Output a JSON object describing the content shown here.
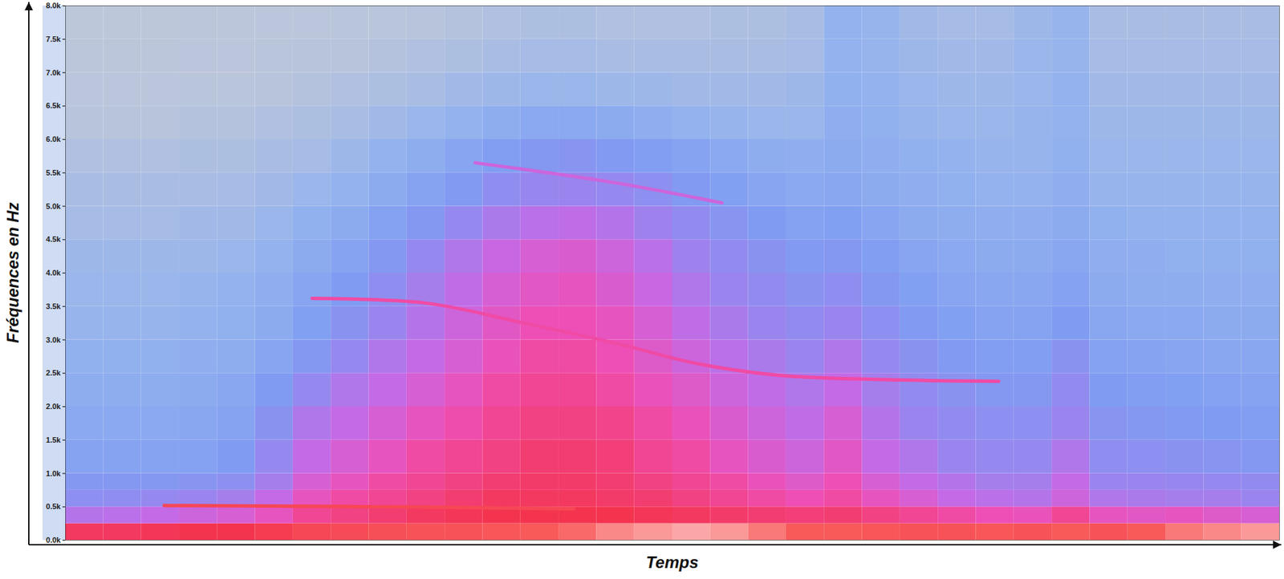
{
  "chart_data": {
    "type": "heatmap",
    "xlabel": "Temps",
    "ylabel": "Fréquences en Hz",
    "xlim": [
      0,
      32
    ],
    "ylim": [
      0,
      8000
    ],
    "tick_labels": "y",
    "yticks": [
      {
        "value": 0,
        "label": "0.0k"
      },
      {
        "value": 500,
        "label": "0.5k"
      },
      {
        "value": 1000,
        "label": "1.0k"
      },
      {
        "value": 1500,
        "label": "1.5k"
      },
      {
        "value": 2000,
        "label": "2.0k"
      },
      {
        "value": 2500,
        "label": "2.5k"
      },
      {
        "value": 3000,
        "label": "3.0k"
      },
      {
        "value": 3500,
        "label": "3.5k"
      },
      {
        "value": 4000,
        "label": "4.0k"
      },
      {
        "value": 4500,
        "label": "4.5k"
      },
      {
        "value": 5000,
        "label": "5.0k"
      },
      {
        "value": 5500,
        "label": "5.5k"
      },
      {
        "value": 6000,
        "label": "6.0k"
      },
      {
        "value": 6500,
        "label": "6.5k"
      },
      {
        "value": 7000,
        "label": "7.0k"
      },
      {
        "value": 7500,
        "label": "7.5k"
      },
      {
        "value": 8000,
        "label": "8.0k"
      }
    ],
    "freq_bins": [
      0,
      250,
      500,
      750,
      1000,
      1500,
      2000,
      2500,
      3000,
      3500,
      4000,
      4500,
      5000,
      5500,
      6000,
      6500,
      7000,
      7500,
      8000
    ],
    "zlim": [
      0,
      100
    ],
    "cells": [
      [
        78,
        78,
        79,
        80,
        80,
        82,
        85,
        86,
        87,
        88,
        88,
        89,
        90,
        91,
        93,
        94,
        95,
        94,
        92,
        90,
        90,
        89,
        88,
        88,
        89,
        88,
        90,
        88,
        90,
        92,
        93,
        94
      ],
      [
        55,
        56,
        58,
        60,
        62,
        66,
        72,
        74,
        76,
        78,
        79,
        80,
        80,
        80,
        80,
        79,
        78,
        77,
        76,
        75,
        76,
        74,
        72,
        70,
        68,
        67,
        72,
        66,
        65,
        66,
        64,
        62
      ],
      [
        45,
        46,
        48,
        50,
        52,
        58,
        66,
        70,
        72,
        74,
        76,
        78,
        78,
        78,
        77,
        76,
        74,
        72,
        70,
        68,
        70,
        66,
        62,
        58,
        56,
        55,
        60,
        54,
        53,
        52,
        52,
        50
      ],
      [
        42,
        42,
        42,
        43,
        45,
        52,
        62,
        66,
        70,
        72,
        74,
        76,
        77,
        77,
        76,
        74,
        72,
        70,
        67,
        64,
        68,
        62,
        58,
        55,
        52,
        52,
        58,
        50,
        50,
        49,
        48,
        47
      ],
      [
        36,
        36,
        36,
        37,
        40,
        48,
        58,
        62,
        66,
        70,
        72,
        74,
        76,
        76,
        75,
        72,
        70,
        66,
        63,
        60,
        65,
        58,
        54,
        50,
        48,
        48,
        54,
        46,
        45,
        44,
        43,
        42
      ],
      [
        33,
        33,
        33,
        34,
        36,
        44,
        54,
        58,
        62,
        66,
        69,
        72,
        74,
        74,
        73,
        70,
        67,
        63,
        60,
        57,
        62,
        55,
        50,
        47,
        45,
        45,
        50,
        43,
        42,
        41,
        40,
        39
      ],
      [
        31,
        31,
        31,
        32,
        34,
        40,
        48,
        54,
        58,
        62,
        66,
        70,
        72,
        72,
        70,
        67,
        64,
        60,
        57,
        54,
        58,
        52,
        47,
        44,
        42,
        42,
        47,
        40,
        39,
        38,
        37,
        36
      ],
      [
        29,
        29,
        29,
        30,
        31,
        35,
        42,
        48,
        54,
        58,
        62,
        67,
        70,
        70,
        68,
        64,
        60,
        56,
        53,
        50,
        54,
        48,
        44,
        41,
        39,
        39,
        44,
        37,
        36,
        35,
        34,
        34
      ],
      [
        27,
        27,
        27,
        28,
        29,
        32,
        38,
        44,
        50,
        55,
        60,
        65,
        68,
        68,
        66,
        62,
        57,
        53,
        50,
        47,
        50,
        45,
        41,
        38,
        36,
        36,
        40,
        34,
        33,
        33,
        32,
        32
      ],
      [
        26,
        26,
        26,
        27,
        28,
        30,
        35,
        40,
        46,
        52,
        57,
        62,
        65,
        66,
        63,
        59,
        54,
        50,
        47,
        44,
        46,
        42,
        38,
        35,
        34,
        34,
        37,
        32,
        31,
        31,
        30,
        30
      ],
      [
        25,
        25,
        25,
        25,
        26,
        28,
        32,
        36,
        42,
        48,
        54,
        59,
        62,
        63,
        60,
        56,
        51,
        47,
        44,
        41,
        42,
        39,
        35,
        33,
        32,
        32,
        34,
        30,
        30,
        29,
        29,
        29
      ],
      [
        23,
        23,
        23,
        24,
        24,
        26,
        29,
        32,
        37,
        42,
        48,
        53,
        56,
        57,
        55,
        51,
        47,
        43,
        40,
        37,
        38,
        35,
        32,
        31,
        30,
        30,
        32,
        29,
        28,
        28,
        28,
        28
      ],
      [
        22,
        22,
        22,
        22,
        23,
        24,
        26,
        28,
        32,
        36,
        41,
        46,
        49,
        50,
        48,
        45,
        41,
        38,
        35,
        33,
        34,
        32,
        30,
        29,
        28,
        28,
        30,
        27,
        27,
        27,
        27,
        27
      ],
      [
        20,
        20,
        20,
        21,
        21,
        22,
        23,
        25,
        28,
        31,
        35,
        39,
        42,
        43,
        41,
        39,
        36,
        33,
        31,
        30,
        32,
        30,
        29,
        28,
        27,
        27,
        29,
        26,
        26,
        26,
        26,
        26
      ],
      [
        18,
        18,
        18,
        19,
        19,
        20,
        21,
        22,
        24,
        26,
        28,
        31,
        33,
        33,
        32,
        30,
        28,
        27,
        26,
        26,
        30,
        29,
        27,
        26,
        26,
        27,
        28,
        25,
        25,
        25,
        25,
        25
      ],
      [
        16,
        16,
        16,
        17,
        17,
        18,
        19,
        20,
        21,
        22,
        24,
        25,
        26,
        26,
        25,
        25,
        24,
        24,
        24,
        25,
        29,
        28,
        26,
        25,
        25,
        26,
        28,
        24,
        24,
        24,
        24,
        24
      ],
      [
        15,
        15,
        15,
        16,
        16,
        17,
        18,
        18,
        19,
        20,
        21,
        22,
        23,
        23,
        22,
        22,
        22,
        22,
        22,
        23,
        28,
        27,
        25,
        24,
        24,
        26,
        27,
        23,
        23,
        23,
        23,
        23
      ],
      [
        14,
        14,
        14,
        15,
        15,
        16,
        16,
        17,
        17,
        18,
        19,
        20,
        21,
        21,
        20,
        20,
        20,
        21,
        21,
        22,
        28,
        27,
        24,
        23,
        23,
        25,
        27,
        22,
        22,
        22,
        22,
        22
      ]
    ],
    "ridges": [
      {
        "x": [
          2.6,
          6,
          9,
          13.4
        ],
        "y": [
          520,
          510,
          500,
          470
        ],
        "level": 85
      },
      {
        "x": [
          6.5,
          9.5,
          12.1,
          14.5,
          16.6,
          18.8,
          22,
          24.6
        ],
        "y": [
          3620,
          3550,
          3250,
          2950,
          2650,
          2470,
          2400,
          2380
        ],
        "level": 70
      },
      {
        "x": [
          10.8,
          14.5,
          17.3
        ],
        "y": [
          5650,
          5350,
          5050
        ],
        "level": 60
      }
    ]
  }
}
